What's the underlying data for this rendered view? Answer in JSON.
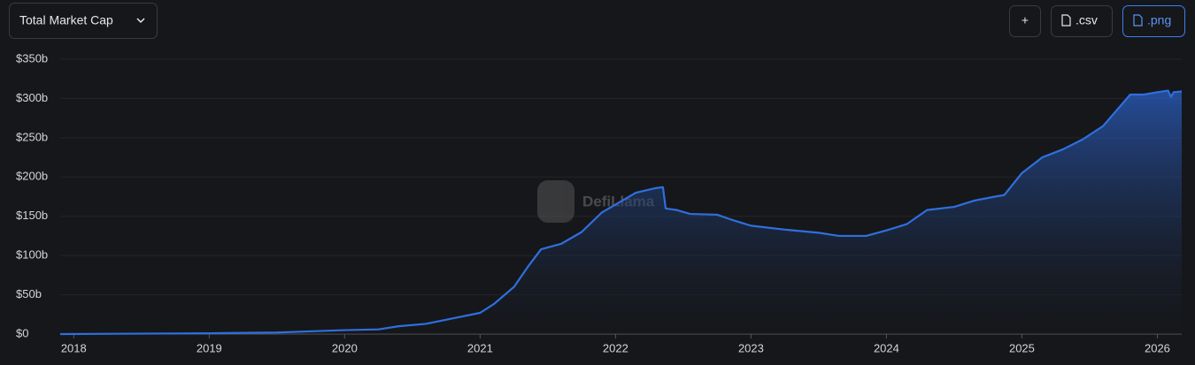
{
  "ui": {
    "selector": "Total Market Cap",
    "buttons": [
      "+",
      ".csv",
      ".png"
    ],
    "watermark": "DefiLlama"
  },
  "chart_data": {
    "type": "area",
    "x": [
      2017.9,
      2019.0,
      2019.5,
      2020.0,
      2020.25,
      2020.4,
      2020.6,
      2020.8,
      2021.0,
      2021.1,
      2021.25,
      2021.35,
      2021.45,
      2021.6,
      2021.75,
      2021.9,
      2022.0,
      2022.15,
      2022.3,
      2022.35,
      2022.37,
      2022.45,
      2022.55,
      2022.75,
      2022.85,
      2023.0,
      2023.25,
      2023.5,
      2023.65,
      2023.85,
      2024.0,
      2024.15,
      2024.3,
      2024.5,
      2024.65,
      2024.8,
      2024.87,
      2025.0,
      2025.15,
      2025.3,
      2025.45,
      2025.6,
      2025.7,
      2025.8,
      2025.9,
      2026.0,
      2026.08,
      2026.1,
      2026.12,
      2026.18
    ],
    "series": [
      {
        "name": "Total Market Cap",
        "color": "#2f6fde",
        "values": [
          0,
          1,
          2,
          5,
          6,
          10,
          13,
          20,
          27,
          38,
          60,
          85,
          108,
          115,
          130,
          155,
          165,
          180,
          186,
          187,
          160,
          158,
          153,
          152,
          146,
          138,
          133,
          129,
          125,
          125,
          132,
          140,
          158,
          162,
          170,
          175,
          177,
          205,
          225,
          235,
          248,
          265,
          285,
          305,
          305,
          308,
          310,
          302,
          308,
          309
        ]
      }
    ],
    "xlim": [
      2017.9,
      2026.18
    ],
    "xticks": [
      2018,
      2019,
      2020,
      2021,
      2022,
      2023,
      2024,
      2025,
      2026
    ],
    "ylim": [
      0,
      350
    ],
    "yticks": [
      {
        "value": 0,
        "label": "$0"
      },
      {
        "value": 50,
        "label": "$50b"
      },
      {
        "value": 100,
        "label": "$100b"
      },
      {
        "value": 150,
        "label": "$150b"
      },
      {
        "value": 200,
        "label": "$200b"
      },
      {
        "value": 250,
        "label": "$250b"
      },
      {
        "value": 300,
        "label": "$300b"
      },
      {
        "value": 350,
        "label": "$350b"
      }
    ],
    "grid": true
  }
}
